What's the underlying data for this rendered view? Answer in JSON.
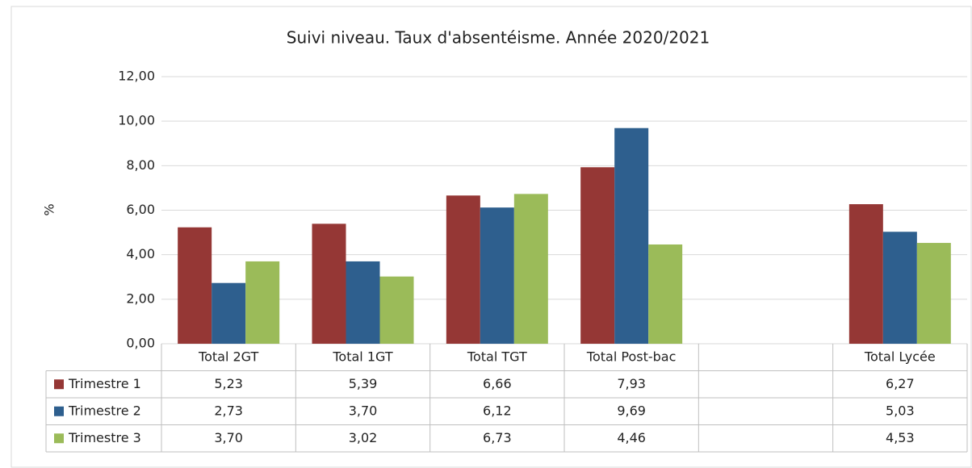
{
  "chart_data": {
    "type": "bar",
    "title": "Suivi niveau. Taux d'absentéisme. Année 2020/2021",
    "y_label": "%",
    "categories": [
      "Total 2GT",
      "Total 1GT",
      "Total TGT",
      "Total Post-bac",
      null,
      "Total Lycée"
    ],
    "series": [
      {
        "name": "Trimestre 1",
        "color": "#953735",
        "values": [
          5.23,
          5.39,
          6.66,
          7.93,
          null,
          6.27
        ],
        "value_labels": [
          "5,23",
          "5,39",
          "6,66",
          "7,93",
          null,
          "6,27"
        ]
      },
      {
        "name": "Trimestre 2",
        "color": "#2e5f8e",
        "values": [
          2.73,
          3.7,
          6.12,
          9.69,
          null,
          5.03
        ],
        "value_labels": [
          "2,73",
          "3,70",
          "6,12",
          "9,69",
          null,
          "5,03"
        ]
      },
      {
        "name": "Trimestre 3",
        "color": "#9bbb59",
        "values": [
          3.7,
          3.02,
          6.73,
          4.46,
          null,
          4.53
        ],
        "value_labels": [
          "3,70",
          "3,02",
          "6,73",
          "4,46",
          null,
          "4,53"
        ]
      }
    ],
    "ylim": [
      0,
      12
    ],
    "yticks": [
      {
        "value": 0,
        "label": "0,00"
      },
      {
        "value": 2,
        "label": "2,00"
      },
      {
        "value": 4,
        "label": "4,00"
      },
      {
        "value": 6,
        "label": "6,00"
      },
      {
        "value": 8,
        "label": "8,00"
      },
      {
        "value": 10,
        "label": "10,00"
      },
      {
        "value": 12,
        "label": "12,00"
      }
    ],
    "grid": true
  }
}
